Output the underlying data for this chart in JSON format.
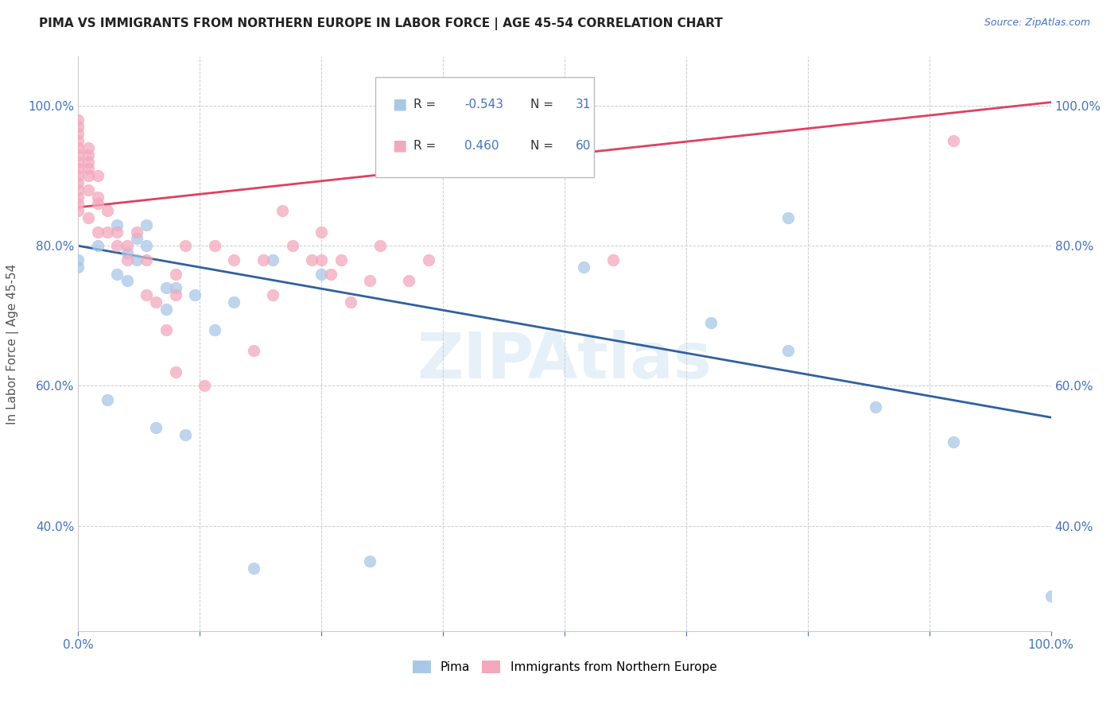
{
  "title": "PIMA VS IMMIGRANTS FROM NORTHERN EUROPE IN LABOR FORCE | AGE 45-54 CORRELATION CHART",
  "source": "Source: ZipAtlas.com",
  "ylabel": "In Labor Force | Age 45-54",
  "xlim": [
    0.0,
    1.0
  ],
  "ylim": [
    0.25,
    1.07
  ],
  "yticks": [
    0.4,
    0.6,
    0.8,
    1.0
  ],
  "xticks": [
    0.0,
    0.125,
    0.25,
    0.375,
    0.5,
    0.625,
    0.75,
    0.875,
    1.0
  ],
  "R_blue": -0.543,
  "N_blue": 31,
  "R_pink": 0.46,
  "N_pink": 60,
  "blue_color": "#a8c8e8",
  "pink_color": "#f4a8bc",
  "blue_line_color": "#3060a0",
  "pink_line_color": "#e04060",
  "blue_points_x": [
    0.0,
    0.0,
    0.02,
    0.03,
    0.04,
    0.04,
    0.05,
    0.05,
    0.06,
    0.06,
    0.07,
    0.07,
    0.08,
    0.09,
    0.09,
    0.1,
    0.11,
    0.12,
    0.14,
    0.16,
    0.18,
    0.2,
    0.25,
    0.3,
    0.52,
    0.65,
    0.73,
    0.73,
    0.82,
    0.9,
    1.0
  ],
  "blue_points_y": [
    0.77,
    0.78,
    0.8,
    0.58,
    0.76,
    0.83,
    0.75,
    0.79,
    0.81,
    0.78,
    0.8,
    0.83,
    0.54,
    0.74,
    0.71,
    0.74,
    0.53,
    0.73,
    0.68,
    0.72,
    0.34,
    0.78,
    0.76,
    0.35,
    0.77,
    0.69,
    0.84,
    0.65,
    0.57,
    0.52,
    0.3
  ],
  "pink_points_x": [
    0.0,
    0.0,
    0.0,
    0.0,
    0.0,
    0.0,
    0.0,
    0.0,
    0.0,
    0.0,
    0.0,
    0.0,
    0.0,
    0.0,
    0.01,
    0.01,
    0.01,
    0.01,
    0.01,
    0.01,
    0.01,
    0.02,
    0.02,
    0.02,
    0.02,
    0.03,
    0.03,
    0.04,
    0.04,
    0.05,
    0.05,
    0.06,
    0.07,
    0.07,
    0.08,
    0.09,
    0.1,
    0.1,
    0.1,
    0.11,
    0.13,
    0.14,
    0.16,
    0.18,
    0.19,
    0.2,
    0.21,
    0.22,
    0.24,
    0.25,
    0.25,
    0.26,
    0.27,
    0.28,
    0.3,
    0.31,
    0.34,
    0.36,
    0.55,
    0.9
  ],
  "pink_points_y": [
    0.85,
    0.86,
    0.87,
    0.88,
    0.89,
    0.9,
    0.91,
    0.92,
    0.93,
    0.94,
    0.95,
    0.96,
    0.97,
    0.98,
    0.84,
    0.88,
    0.9,
    0.91,
    0.92,
    0.93,
    0.94,
    0.82,
    0.86,
    0.87,
    0.9,
    0.82,
    0.85,
    0.8,
    0.82,
    0.78,
    0.8,
    0.82,
    0.73,
    0.78,
    0.72,
    0.68,
    0.62,
    0.73,
    0.76,
    0.8,
    0.6,
    0.8,
    0.78,
    0.65,
    0.78,
    0.73,
    0.85,
    0.8,
    0.78,
    0.78,
    0.82,
    0.76,
    0.78,
    0.72,
    0.75,
    0.8,
    0.75,
    0.78,
    0.78,
    0.95
  ],
  "blue_trend_start_y": 0.8,
  "blue_trend_end_y": 0.555,
  "pink_trend_start_y": 0.855,
  "pink_trend_end_y": 1.005
}
